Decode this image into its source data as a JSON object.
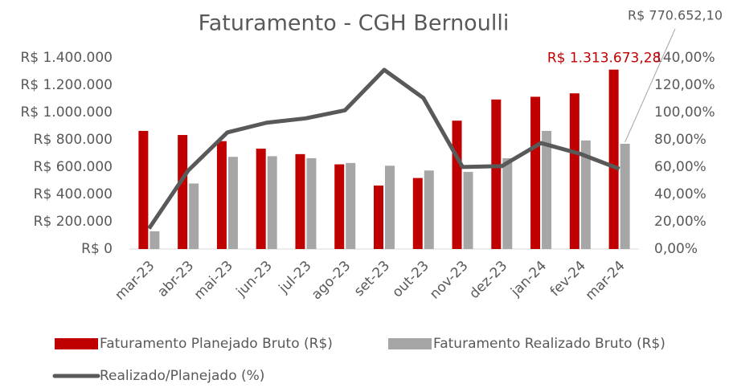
{
  "chart_data": {
    "type": "bar",
    "title": "Faturamento - CGH Bernoulli",
    "categories": [
      "mar-23",
      "abr-23",
      "mai-23",
      "jun-23",
      "jul-23",
      "ago-23",
      "set-23",
      "out-23",
      "nov-23",
      "dez-23",
      "jan-24",
      "fev-24",
      "mar-24"
    ],
    "series": [
      {
        "name": "Faturamento Planejado Bruto (R$)",
        "type": "bar",
        "color": "#c00000",
        "values": [
          865000,
          835000,
          790000,
          735000,
          695000,
          620000,
          465000,
          520000,
          940000,
          1095000,
          1115000,
          1140000,
          1313673.28
        ],
        "value_labels": [
          null,
          null,
          null,
          null,
          null,
          null,
          null,
          null,
          null,
          null,
          null,
          null,
          "R$ 1.313.673,28"
        ]
      },
      {
        "name": "Faturamento Realizado Bruto (R$)",
        "type": "bar",
        "color": "#a6a6a6",
        "values": [
          130000,
          480000,
          675000,
          680000,
          665000,
          630000,
          610000,
          575000,
          565000,
          665000,
          865000,
          795000,
          770652.1
        ],
        "value_labels": [
          null,
          null,
          null,
          null,
          null,
          null,
          null,
          null,
          null,
          null,
          null,
          null,
          "R$ 770.652,10"
        ]
      },
      {
        "name": "Realizado/Planejado (%)",
        "type": "line",
        "axis": "y2",
        "color": "#595959",
        "values": [
          15.0,
          57.5,
          85.4,
          92.5,
          95.7,
          101.6,
          131.2,
          110.6,
          60.1,
          60.7,
          77.6,
          69.7,
          58.7
        ]
      }
    ],
    "ylim": [
      0,
      1400000
    ],
    "yticks": [
      {
        "value": 0,
        "label": "R$ 0"
      },
      {
        "value": 200000,
        "label": "R$ 200.000"
      },
      {
        "value": 400000,
        "label": "R$ 400.000"
      },
      {
        "value": 600000,
        "label": "R$ 600.000"
      },
      {
        "value": 800000,
        "label": "R$ 800.000"
      },
      {
        "value": 1000000,
        "label": "R$ 1.000.000"
      },
      {
        "value": 1200000,
        "label": "R$ 1.200.000"
      },
      {
        "value": 1400000,
        "label": "R$ 1.400.000"
      }
    ],
    "y2lim": [
      0,
      140
    ],
    "y2ticks": [
      {
        "value": 0,
        "label": "0,00%"
      },
      {
        "value": 20,
        "label": "20,00%"
      },
      {
        "value": 40,
        "label": "40,00%"
      },
      {
        "value": 60,
        "label": "60,00%"
      },
      {
        "value": 80,
        "label": "80,00%"
      },
      {
        "value": 100,
        "label": "100,00%"
      },
      {
        "value": 120,
        "label": "120,00%"
      },
      {
        "value": 140,
        "label": "140,00%"
      }
    ],
    "grid": false
  }
}
